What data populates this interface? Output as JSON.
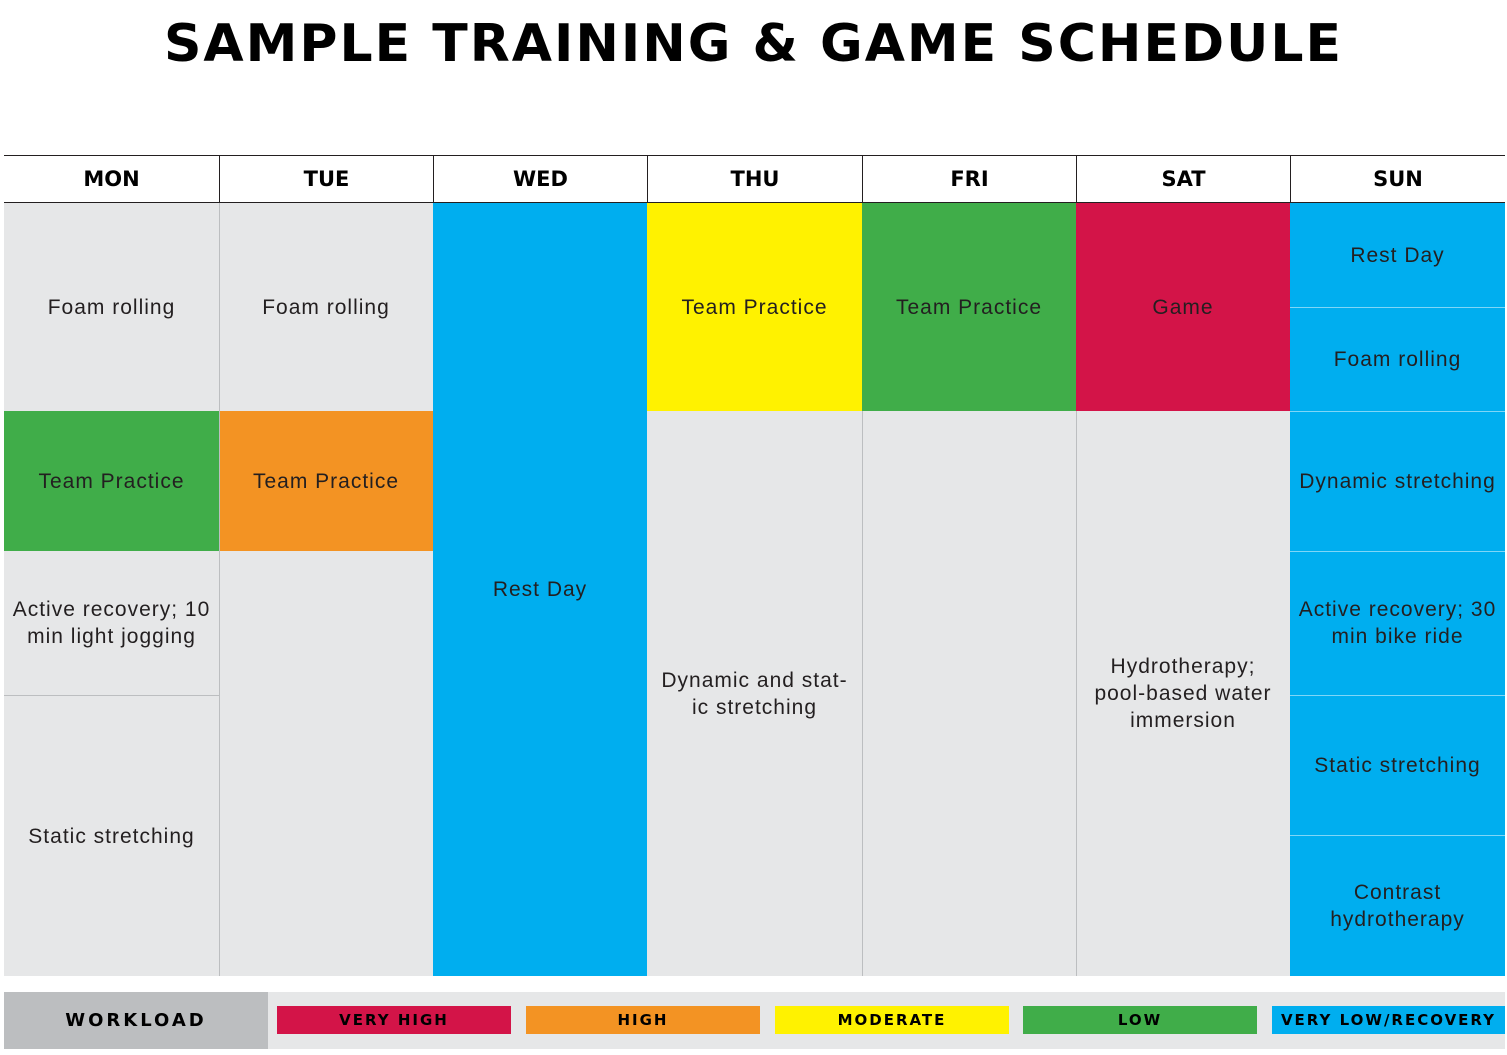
{
  "title": "SAMPLE TRAINING & GAME SCHEDULE",
  "days": [
    "MON",
    "TUE",
    "WED",
    "THU",
    "FRI",
    "SAT",
    "SUN"
  ],
  "colors": {
    "very_high": "#d31448",
    "high": "#f39323",
    "moderate": "#fff200",
    "low": "#40ad49",
    "very_low_recovery": "#00aeef",
    "blank": "#e6e7e8"
  },
  "schedule": {
    "mon": {
      "a": "Foam rolling",
      "b": "Team Practice",
      "c": "Active recovery; 10 min light jogging",
      "d": "Static stretching"
    },
    "tue": {
      "a": "Foam rolling",
      "b": "Team Practice",
      "c": ""
    },
    "wed": {
      "a": "Rest Day"
    },
    "thu": {
      "a": "Team Practice",
      "b": "Dynamic and stat-ic stretching"
    },
    "fri": {
      "a": "Team Practice",
      "b": ""
    },
    "sat": {
      "a": "Game",
      "b": "Hydrotherapy; pool-based water immersion"
    },
    "sun": {
      "a": "Rest Day",
      "b": "Foam rolling",
      "c": "Dynamic stretching",
      "d": "Active recovery; 30 min bike ride",
      "e": "Static stretching",
      "f": "Contrast hydrotherapy"
    }
  },
  "legend": {
    "label": "WORKLOAD",
    "items": [
      "VERY HIGH",
      "HIGH",
      "MODERATE",
      "LOW",
      "VERY LOW/RECOVERY"
    ]
  }
}
